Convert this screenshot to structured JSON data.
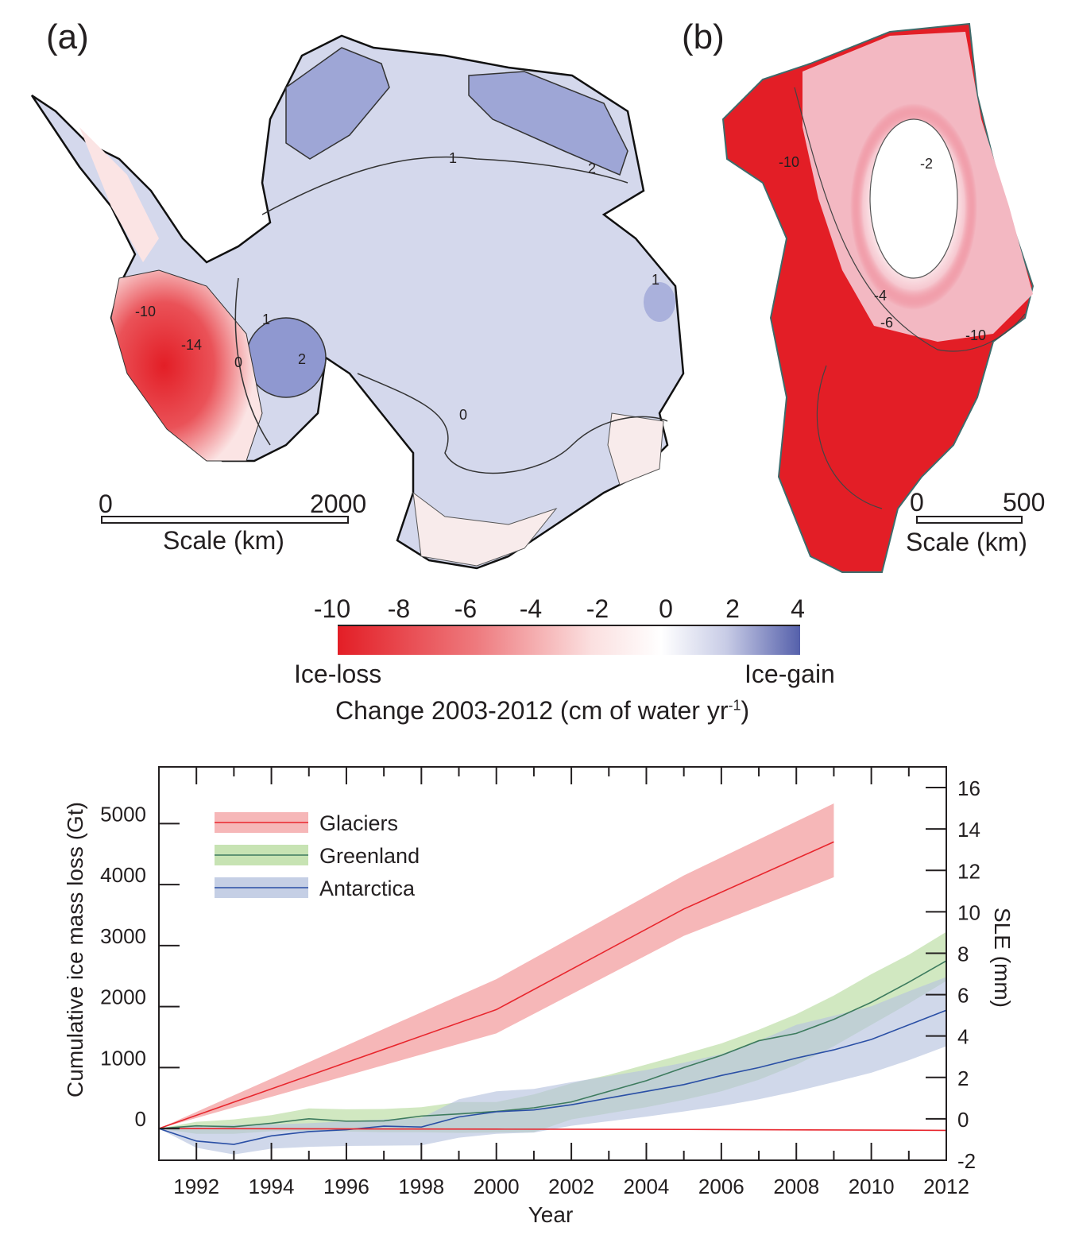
{
  "panels": {
    "a": {
      "label": "(a)",
      "scale_start": "0",
      "scale_end": "2000",
      "scale_label": "Scale (km)",
      "contour_labels": [
        "1",
        "2",
        "-10",
        "-14",
        "0",
        "1",
        "2",
        "0",
        "1"
      ]
    },
    "b": {
      "label": "(b)",
      "scale_start": "0",
      "scale_end": "500",
      "scale_label": "Scale (km)",
      "contour_labels": [
        "-2",
        "-10",
        "-4",
        "-6",
        "-10"
      ]
    }
  },
  "colorbar": {
    "ticks": [
      "-10",
      "-8",
      "-6",
      "-4",
      "-2",
      "0",
      "2",
      "4"
    ],
    "left_label": "Ice-loss",
    "right_label": "Ice-gain",
    "title_main": "Change 2003-2012 (cm of water yr",
    "title_sup": "-1",
    "title_end": ")",
    "colors": {
      "loss": "#e31e26",
      "neutral": "#ffffff",
      "gain": "#5560ab"
    }
  },
  "chart_data": {
    "type": "line",
    "xlabel": "Year",
    "ylabel": "Cumulative ice mass loss (Gt)",
    "y2label": "SLE (mm)",
    "xlim": [
      1991,
      2012
    ],
    "ylim": [
      -520,
      5930
    ],
    "y2lim": [
      -2,
      17
    ],
    "x_ticks": [
      "1992",
      "1994",
      "1996",
      "1998",
      "2000",
      "2002",
      "2004",
      "2006",
      "2008",
      "2010",
      "2012"
    ],
    "y_ticks": [
      "0",
      "1000",
      "2000",
      "3000",
      "4000",
      "5000"
    ],
    "y2_ticks": [
      "-2",
      "0",
      "2",
      "4",
      "6",
      "8",
      "10",
      "12",
      "14",
      "16"
    ],
    "legend": "top-left",
    "series": [
      {
        "name": "Glaciers",
        "color": "#e8262d",
        "band_color": "#f4a5a6",
        "x": [
          1991,
          2000,
          2005,
          2009
        ],
        "values": [
          0,
          1950,
          3600,
          4700
        ],
        "upper": [
          0,
          2450,
          4150,
          5330
        ],
        "lower": [
          0,
          1560,
          3160,
          4120
        ]
      },
      {
        "name": "Greenland",
        "color": "#3d7b5e",
        "band_color": "#b9dca0",
        "x": [
          1991,
          1992,
          1993,
          1994,
          1995,
          1996,
          1997,
          1998,
          1999,
          2000,
          2001,
          2002,
          2003,
          2004,
          2005,
          2006,
          2007,
          2008,
          2009,
          2010,
          2011,
          2012
        ],
        "values": [
          0,
          44,
          30,
          87,
          160,
          120,
          125,
          205,
          240,
          280,
          340,
          436,
          610,
          785,
          1000,
          1200,
          1440,
          1560,
          1790,
          2070,
          2400,
          2750
        ],
        "upper": [
          0,
          110,
          150,
          220,
          330,
          315,
          320,
          350,
          435,
          435,
          560,
          740,
          880,
          1050,
          1220,
          1395,
          1620,
          1875,
          2180,
          2530,
          2850,
          3225
        ],
        "lower": [
          0,
          -87,
          -87,
          -44,
          -40,
          -50,
          -60,
          -60,
          -70,
          -65,
          -60,
          150,
          250,
          350,
          470,
          610,
          800,
          1045,
          1350,
          1700,
          2050,
          2420
        ]
      },
      {
        "name": "Antarctica",
        "color": "#2a4fa5",
        "band_color": "#b7c3df",
        "x": [
          1991,
          1992,
          1993,
          1994,
          1995,
          1996,
          1997,
          1998,
          1999,
          2000,
          2001,
          2002,
          2003,
          2004,
          2005,
          2006,
          2007,
          2008,
          2009,
          2010,
          2011,
          2012
        ],
        "values": [
          0,
          -205,
          -260,
          -120,
          -50,
          -20,
          40,
          25,
          190,
          275,
          305,
          390,
          500,
          610,
          720,
          870,
          1000,
          1155,
          1290,
          1460,
          1700,
          1940
        ],
        "upper": [
          0,
          44,
          60,
          70,
          87,
          120,
          150,
          175,
          480,
          610,
          650,
          760,
          860,
          960,
          1080,
          1220,
          1440,
          1700,
          1850,
          2005,
          2250,
          2485
        ],
        "lower": [
          0,
          -315,
          -425,
          -330,
          -300,
          -285,
          -280,
          -275,
          -150,
          -87,
          -65,
          45,
          120,
          195,
          280,
          370,
          480,
          610,
          760,
          915,
          1120,
          1350
        ]
      },
      {
        "color": "#e8262d",
        "x": [
          1991,
          2000,
          2005,
          2012
        ],
        "values": [
          0,
          -10,
          -15,
          -30
        ]
      }
    ]
  }
}
